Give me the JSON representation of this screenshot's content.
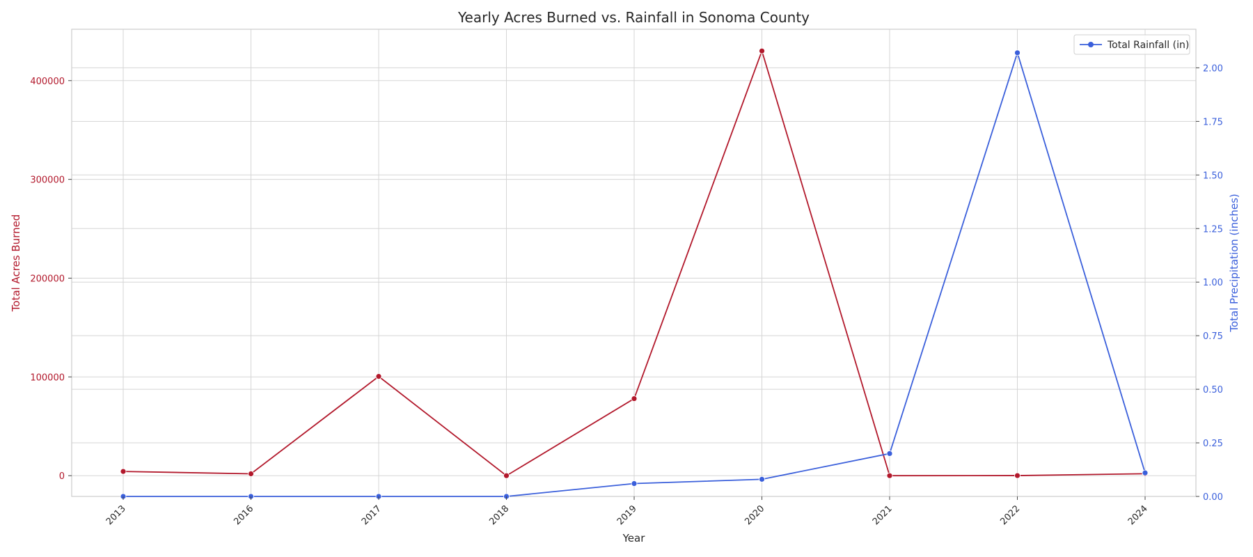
{
  "chart_data": {
    "type": "line",
    "title": "Yearly Acres Burned vs. Rainfall in Sonoma County",
    "xlabel": "Year",
    "categories": [
      "2013",
      "2016",
      "2017",
      "2018",
      "2019",
      "2020",
      "2021",
      "2022",
      "2024"
    ],
    "y_left": {
      "label": "Total Acres Burned",
      "ticks": [
        0,
        100000,
        200000,
        300000,
        400000
      ],
      "tick_labels": [
        "0",
        "100000",
        "200000",
        "300000",
        "400000"
      ],
      "range": [
        -21000,
        452000
      ],
      "color": "#b2182b"
    },
    "y_right": {
      "label": "Total Precipitation (inches)",
      "ticks": [
        0,
        0.25,
        0.5,
        0.75,
        1.0,
        1.25,
        1.5,
        1.75,
        2.0
      ],
      "tick_labels": [
        "0.00",
        "0.25",
        "0.50",
        "0.75",
        "1.00",
        "1.25",
        "1.50",
        "1.75",
        "2.00"
      ],
      "range": [
        0,
        2.18
      ],
      "color": "#3a5fdb"
    },
    "series": [
      {
        "values": [
          4300,
          1900,
          100500,
          0,
          78000,
          430000,
          0,
          100,
          2000
        ],
        "axis": "left",
        "color": "#b2182b"
      },
      {
        "name": "Total Rainfall (in)",
        "values": [
          0.0,
          0.0,
          0.0,
          0.0,
          0.06,
          0.08,
          0.2,
          2.07,
          0.11
        ],
        "axis": "right",
        "color": "#3a5fdb"
      }
    ],
    "legend": {
      "placement": "top-right",
      "entries": [
        "Total Rainfall (in)"
      ]
    },
    "grid": true
  }
}
